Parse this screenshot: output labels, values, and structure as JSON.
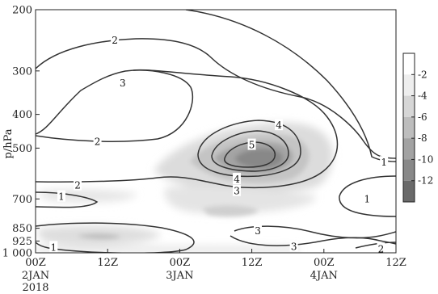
{
  "chart_data": {
    "type": "contour",
    "ylabel": "p/hPa",
    "y_scale": "log-pressure (inverted)",
    "y_ticks": [
      {
        "value": 200,
        "label": "200"
      },
      {
        "value": 300,
        "label": "300"
      },
      {
        "value": 400,
        "label": "400"
      },
      {
        "value": 500,
        "label": "500"
      },
      {
        "value": 700,
        "label": "700"
      },
      {
        "value": 850,
        "label": "850"
      },
      {
        "value": 925,
        "label": "925"
      },
      {
        "value": 1000,
        "label": "1 000"
      }
    ],
    "x_ticks": [
      {
        "value": 0,
        "label": "00Z",
        "sub": [
          "2JAN",
          "2018"
        ]
      },
      {
        "value": 12,
        "label": "12Z",
        "sub": []
      },
      {
        "value": 24,
        "label": "00Z",
        "sub": [
          "3JAN"
        ]
      },
      {
        "value": 36,
        "label": "12Z",
        "sub": []
      },
      {
        "value": 48,
        "label": "00Z",
        "sub": [
          "4JAN"
        ]
      },
      {
        "value": 60,
        "label": "12Z",
        "sub": []
      }
    ],
    "xlim": [
      0,
      60
    ],
    "ylim": [
      1000,
      200
    ],
    "contour_labels": [
      {
        "text": "2",
        "x": 13.2,
        "p": 245
      },
      {
        "text": "3",
        "x": 14.5,
        "p": 325
      },
      {
        "text": "2",
        "x": 10.3,
        "p": 480
      },
      {
        "text": "2",
        "x": 7.0,
        "p": 640
      },
      {
        "text": "1",
        "x": 4.3,
        "p": 690
      },
      {
        "text": "4",
        "x": 40.5,
        "p": 430
      },
      {
        "text": "5",
        "x": 36.0,
        "p": 490
      },
      {
        "text": "4",
        "x": 33.5,
        "p": 615
      },
      {
        "text": "3",
        "x": 33.5,
        "p": 665
      },
      {
        "text": "1",
        "x": 58.0,
        "p": 550
      },
      {
        "text": "1",
        "x": 55.2,
        "p": 700
      },
      {
        "text": "3",
        "x": 37.0,
        "p": 865
      },
      {
        "text": "3",
        "x": 43.0,
        "p": 960
      },
      {
        "text": "2",
        "x": 57.5,
        "p": 975
      },
      {
        "text": "1",
        "x": 3.0,
        "p": 965
      }
    ],
    "colorbar": {
      "labels": [
        "2",
        "4",
        "6",
        "8",
        "10",
        "12"
      ],
      "label_prefix": "-",
      "colors": [
        "#ffffff",
        "#eeeeee",
        "#d6d6d6",
        "#bdbdbd",
        "#a2a2a2",
        "#888888",
        "#6a6a6a"
      ]
    }
  }
}
